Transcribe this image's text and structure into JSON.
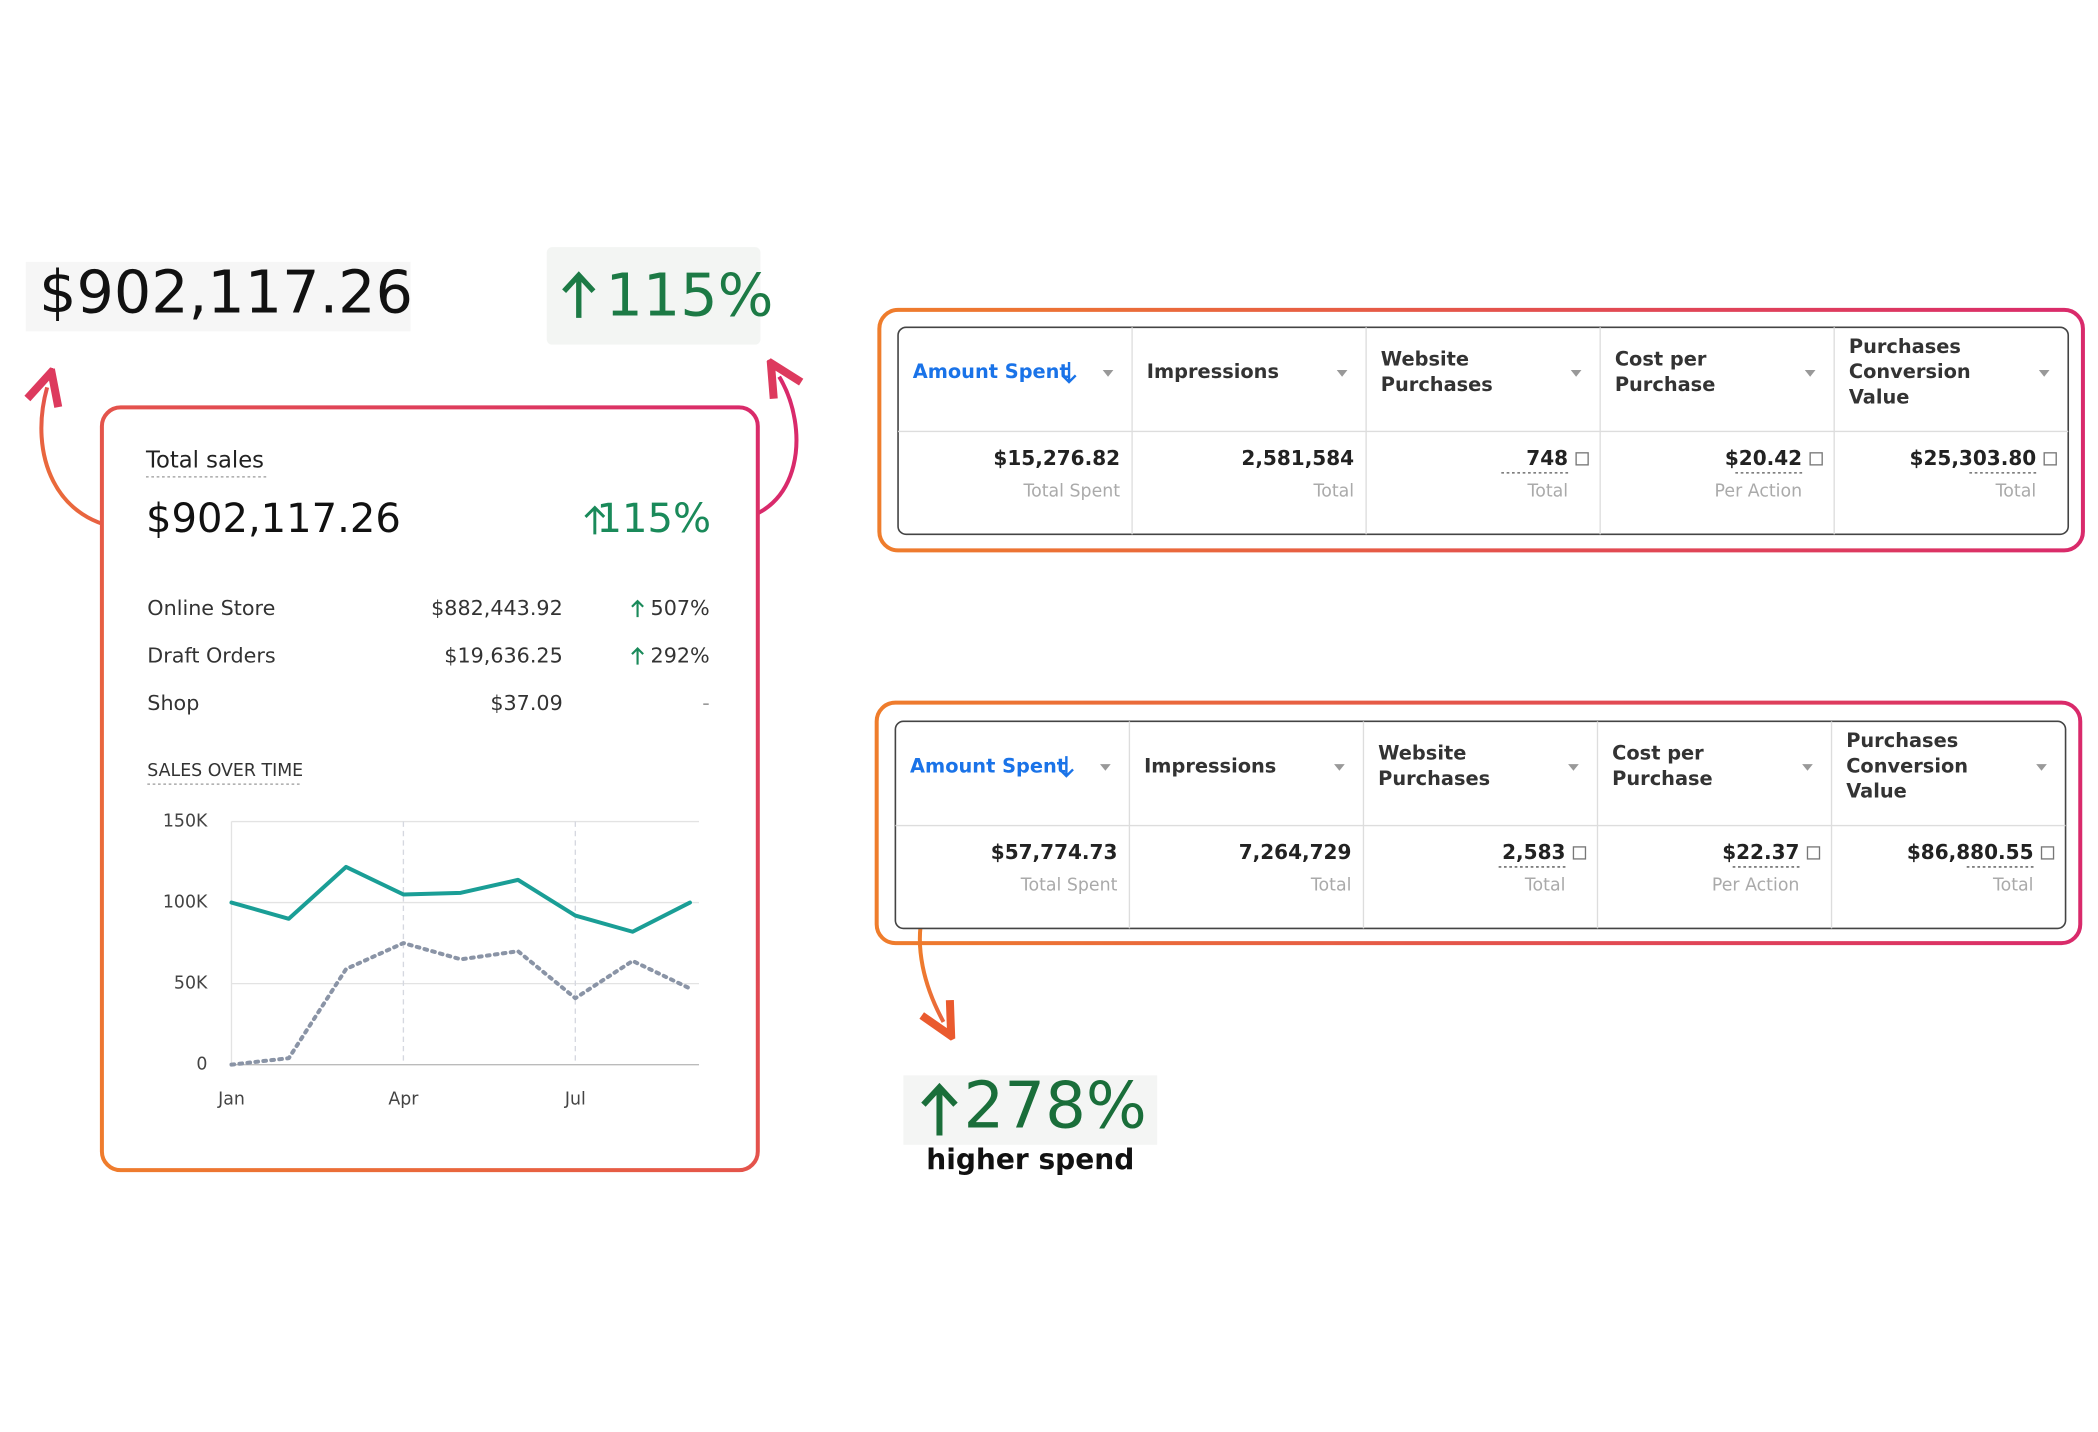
{
  "callout_total": "$902,117.26",
  "callout_growth": "115%",
  "sales_card": {
    "title": "Total sales",
    "total": "$902,117.26",
    "growth": "115%",
    "rows": [
      {
        "label": "Online Store",
        "value": "$882,443.92",
        "change": "507%"
      },
      {
        "label": "Draft Orders",
        "value": "$19,636.25",
        "change": "292%"
      },
      {
        "label": "Shop",
        "value": "$37.09",
        "change": "-"
      }
    ],
    "chart_title": "SALES OVER TIME"
  },
  "chart_data": {
    "type": "line",
    "categories": [
      "Jan",
      null,
      null,
      "Apr",
      null,
      null,
      "Jul",
      null,
      null
    ],
    "series": [
      {
        "color": "#1a9e96",
        "dashed": false,
        "values": [
          100000,
          90000,
          122000,
          105000,
          106000,
          114000,
          92000,
          82000,
          100000
        ]
      },
      {
        "color": "#8a94a6",
        "dashed": true,
        "values": [
          0,
          4000,
          59000,
          75000,
          65000,
          70000,
          41000,
          64000,
          47000
        ]
      }
    ],
    "ylim": [
      0,
      150000
    ],
    "yticks": [
      0,
      {
        "value": 50000,
        "label": "50K"
      },
      {
        "value": 100000,
        "label": "100K"
      },
      {
        "value": 150000,
        "label": "150K"
      }
    ],
    "grid": true
  },
  "tables": [
    {
      "headers": [
        [
          "Amount Spent"
        ],
        [
          "Impressions"
        ],
        [
          "Website",
          "Purchases"
        ],
        [
          "Cost per",
          "Purchase"
        ],
        [
          "Purchases",
          "Conversion",
          "Value"
        ]
      ],
      "cells": [
        "$15,276.82",
        "2,581,584",
        "748",
        "$20.42",
        "$25,303.80"
      ],
      "sublabels": [
        "Total Spent",
        "Total",
        "Total",
        "Per Action",
        "Total"
      ]
    },
    {
      "headers": [
        [
          "Amount Spent"
        ],
        [
          "Impressions"
        ],
        [
          "Website",
          "Purchases"
        ],
        [
          "Cost per",
          "Purchase"
        ],
        [
          "Purchases",
          "Conversion",
          "Value"
        ]
      ],
      "cells": [
        "$57,774.73",
        "7,264,729",
        "2,583",
        "$22.37",
        "$86,880.55"
      ],
      "sublabels": [
        "Total Spent",
        "Total",
        "Total",
        "Per Action",
        "Total"
      ]
    }
  ],
  "callout_spend": {
    "value": "278%",
    "caption": "higher spend"
  }
}
